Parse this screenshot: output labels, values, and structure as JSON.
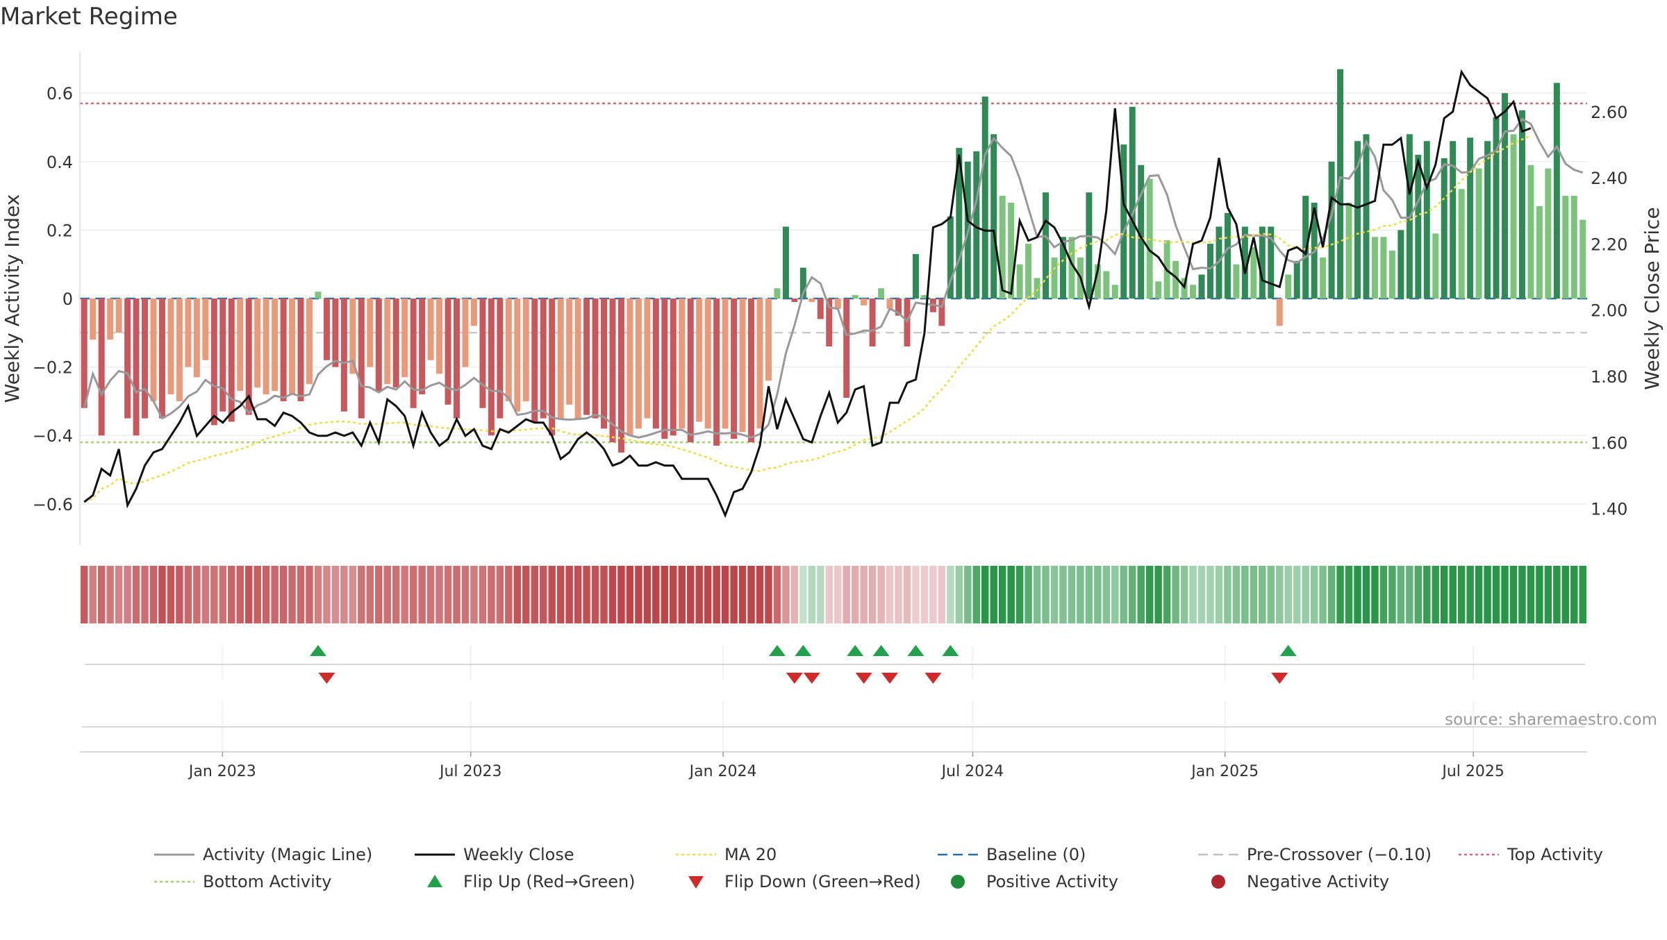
{
  "chart_data": {
    "type": "bar",
    "title": "Market Regime",
    "ylabel_left": "Weekly Activity Index",
    "ylabel_right": "Weekly Close Price",
    "ylim_left": [
      -0.72,
      0.72
    ],
    "ylim_right": [
      1.29,
      2.78
    ],
    "yticks_left": [
      {
        "v": 0.6,
        "label": "0.6"
      },
      {
        "v": 0.4,
        "label": "0.4"
      },
      {
        "v": 0.2,
        "label": "0.2"
      },
      {
        "v": 0,
        "label": "0"
      },
      {
        "v": -0.2,
        "label": "−0.2"
      },
      {
        "v": -0.4,
        "label": "−0.4"
      },
      {
        "v": -0.6,
        "label": "−0.6"
      }
    ],
    "yticks_right": [
      "2.60",
      "2.40",
      "2.20",
      "2.00",
      "1.80",
      "1.60",
      "1.40"
    ],
    "x_start": "2022-09-19",
    "x_end": "2025-09-22",
    "xticks": [
      {
        "date": "2023-01-01",
        "label": "Jan 2023"
      },
      {
        "date": "2023-07-01",
        "label": "Jul 2023"
      },
      {
        "date": "2024-01-01",
        "label": "Jan 2024"
      },
      {
        "date": "2024-07-01",
        "label": "Jul 2024"
      },
      {
        "date": "2025-01-01",
        "label": "Jan 2025"
      },
      {
        "date": "2025-07-01",
        "label": "Jul 2025"
      }
    ],
    "reference_lines": {
      "baseline": 0,
      "pre_crossover": -0.1,
      "top_activity": 0.57,
      "bottom_activity": -0.42
    },
    "activity_bars": [
      -0.32,
      -0.12,
      -0.4,
      -0.12,
      -0.1,
      -0.35,
      -0.4,
      -0.35,
      -0.3,
      -0.35,
      -0.28,
      -0.3,
      -0.2,
      -0.23,
      -0.18,
      -0.37,
      -0.33,
      -0.36,
      -0.27,
      -0.34,
      -0.26,
      -0.28,
      -0.27,
      -0.3,
      -0.28,
      -0.3,
      -0.25,
      0.02,
      -0.18,
      -0.2,
      -0.33,
      -0.22,
      -0.35,
      -0.2,
      -0.27,
      -0.25,
      -0.26,
      -0.23,
      -0.32,
      -0.28,
      -0.18,
      -0.22,
      -0.31,
      -0.35,
      -0.2,
      -0.08,
      -0.32,
      -0.4,
      -0.35,
      -0.3,
      -0.33,
      -0.3,
      -0.36,
      -0.35,
      -0.4,
      -0.35,
      -0.31,
      -0.35,
      -0.34,
      -0.35,
      -0.38,
      -0.42,
      -0.45,
      -0.4,
      -0.38,
      -0.35,
      -0.38,
      -0.41,
      -0.4,
      -0.38,
      -0.42,
      -0.36,
      -0.38,
      -0.43,
      -0.38,
      -0.41,
      -0.39,
      -0.42,
      -0.38,
      -0.24,
      0.03,
      0.21,
      -0.01,
      0.09,
      -0.01,
      -0.06,
      -0.14,
      -0.03,
      -0.29,
      0.01,
      -0.02,
      -0.14,
      0.03,
      -0.03,
      -0.05,
      -0.14,
      0.13,
      0.01,
      -0.04,
      -0.08,
      0.24,
      0.44,
      0.4,
      0.43,
      0.59,
      0.48,
      0.3,
      0.28,
      0.1,
      0.16,
      0.06,
      0.31,
      0.12,
      0.18,
      0.18,
      0.12,
      0.31,
      0.1,
      0.08,
      0.04,
      0.45,
      0.56,
      0.39,
      0.35,
      0.05,
      0.17,
      0.11,
      0.06,
      0.04,
      0.07,
      0.16,
      0.21,
      0.25,
      0.1,
      0.21,
      0.15,
      0.21,
      0.21,
      -0.08,
      0.07,
      0.11,
      0.3,
      0.28,
      0.12,
      0.4,
      0.67,
      0.28,
      0.46,
      0.48,
      0.18,
      0.18,
      0.14,
      0.2,
      0.48,
      0.42,
      0.46,
      0.19,
      0.41,
      0.46,
      0.32,
      0.47,
      0.38,
      0.46,
      0.53,
      0.6,
      0.48,
      0.55,
      0.39,
      0.27,
      0.38,
      0.63,
      0.3,
      0.3,
      0.23
    ],
    "weekly_close": [
      1.42,
      1.44,
      1.52,
      1.5,
      1.58,
      1.41,
      1.46,
      1.53,
      1.57,
      1.58,
      1.62,
      1.66,
      1.71,
      1.62,
      1.65,
      1.68,
      1.66,
      1.69,
      1.71,
      1.74,
      1.67,
      1.67,
      1.65,
      1.69,
      1.68,
      1.66,
      1.63,
      1.62,
      1.62,
      1.63,
      1.62,
      1.63,
      1.59,
      1.66,
      1.6,
      1.73,
      1.71,
      1.68,
      1.59,
      1.69,
      1.63,
      1.59,
      1.61,
      1.67,
      1.62,
      1.64,
      1.59,
      1.58,
      1.64,
      1.63,
      1.65,
      1.67,
      1.66,
      1.66,
      1.62,
      1.55,
      1.57,
      1.61,
      1.63,
      1.61,
      1.58,
      1.53,
      1.54,
      1.56,
      1.53,
      1.53,
      1.54,
      1.53,
      1.53,
      1.49,
      1.49,
      1.49,
      1.49,
      1.44,
      1.38,
      1.45,
      1.46,
      1.51,
      1.59,
      1.77,
      1.64,
      1.73,
      1.67,
      1.61,
      1.6,
      1.68,
      1.75,
      1.66,
      1.69,
      1.76,
      1.77,
      1.59,
      1.6,
      1.72,
      1.72,
      1.78,
      1.79,
      1.93,
      2.25,
      2.26,
      2.28,
      2.47,
      2.27,
      2.25,
      2.24,
      2.24,
      2.06,
      2.05,
      2.27,
      2.21,
      2.22,
      2.27,
      2.25,
      2.2,
      2.14,
      2.1,
      2.01,
      2.12,
      2.3,
      2.61,
      2.32,
      2.27,
      2.22,
      2.18,
      2.16,
      2.12,
      2.1,
      2.07,
      2.2,
      2.21,
      2.28,
      2.46,
      2.31,
      2.26,
      2.11,
      2.22,
      2.09,
      2.08,
      2.07,
      2.18,
      2.19,
      2.17,
      2.31,
      2.19,
      2.34,
      2.32,
      2.32,
      2.31,
      2.32,
      2.33,
      2.5,
      2.5,
      2.52,
      2.35,
      2.45,
      2.37,
      2.44,
      2.58,
      2.6,
      2.72,
      2.68,
      2.66,
      2.64,
      2.58,
      2.6,
      2.63,
      2.54,
      2.55
    ]
  },
  "source": "source: sharemaestro.com",
  "legend": [
    {
      "label": "Activity (Magic Line)",
      "symbol": "line-solid",
      "color": "#999999"
    },
    {
      "label": "Weekly Close",
      "symbol": "line-solid",
      "color": "#111111"
    },
    {
      "label": "MA 20",
      "symbol": "line-dotted",
      "color": "#f0dc40"
    },
    {
      "label": "Baseline (0)",
      "symbol": "line-dashed",
      "color": "#2b6ea3"
    },
    {
      "label": "Pre-Crossover (−0.10)",
      "symbol": "line-dashed",
      "color": "#c0c0c0"
    },
    {
      "label": "Top Activity",
      "symbol": "line-dotted",
      "color": "#d06a7a"
    },
    {
      "label": "Bottom Activity",
      "symbol": "line-dotted",
      "color": "#9fd66a"
    },
    {
      "label": "Flip Up (Red→Green)",
      "symbol": "triangle-up",
      "color": "#22a04b"
    },
    {
      "label": "Flip Down (Green→Red)",
      "symbol": "triangle-down",
      "color": "#d12a2a"
    },
    {
      "label": "Positive Activity",
      "symbol": "circle",
      "color": "#1e8a3a"
    },
    {
      "label": "Negative Activity",
      "symbol": "circle",
      "color": "#b02530"
    }
  ],
  "colors": {
    "neg_dark": "#c9585c",
    "neg_light": "#e99a7a",
    "pos_dark": "#2f8a55",
    "pos_light": "#7cc47c",
    "magic_line": "#999999",
    "close": "#111111",
    "ma20": "#f0dc40",
    "baseline": "#2b6ea3",
    "pre_crossover": "#c0c0c0",
    "top": "#d06a7a",
    "bottom": "#9fd66a",
    "flip_up": "#22a04b",
    "flip_down": "#d12a2a"
  }
}
